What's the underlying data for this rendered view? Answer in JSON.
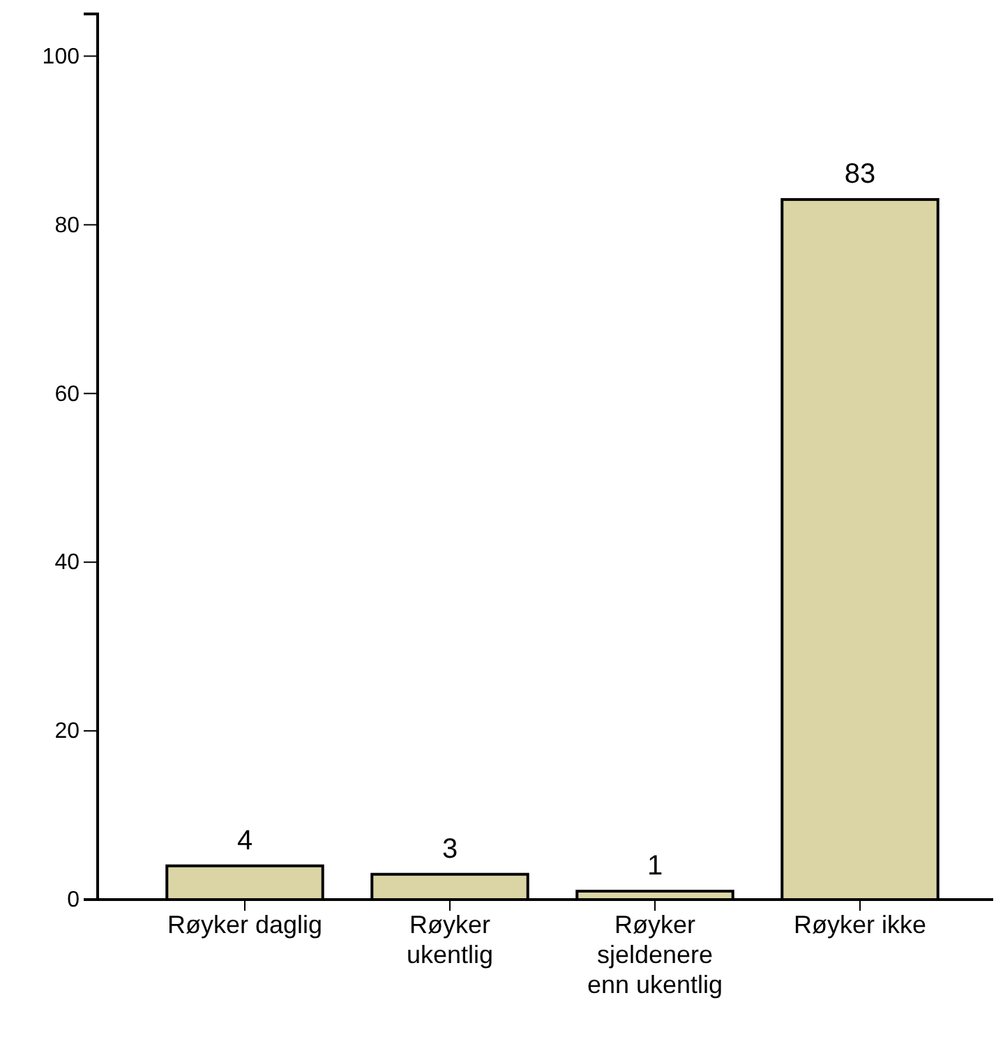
{
  "chart_data": {
    "type": "bar",
    "categories": [
      "Røyker daglig",
      "Røyker ukentlig",
      "Røyker sjeldenere enn ukentlig",
      "Røyker ikke"
    ],
    "values": [
      4,
      3,
      1,
      83
    ],
    "color": "#dbd5a6",
    "ylim": [
      0,
      105
    ],
    "yticks": [
      0,
      20,
      40,
      60,
      80,
      100
    ],
    "data_labels": true,
    "grid": false
  }
}
